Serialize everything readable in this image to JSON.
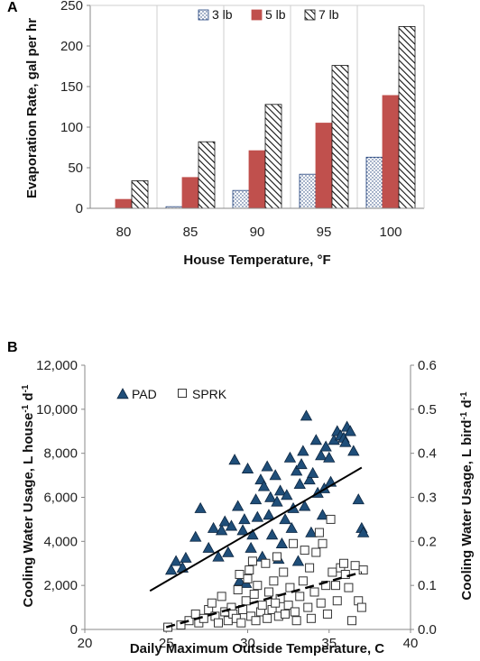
{
  "colors": {
    "lb5": "#c0504d",
    "pad_fill": "#1f4e79",
    "axis": "#888888",
    "grid": "#cfcfcf"
  },
  "chart_data": [
    {
      "panel_label": "A",
      "type": "bar",
      "categories": [
        "80",
        "85",
        "90",
        "95",
        "100"
      ],
      "series": [
        {
          "name": "3 lb",
          "pattern": "dots",
          "values": [
            0,
            2,
            22,
            42,
            63
          ]
        },
        {
          "name": "5 lb",
          "pattern": "solid-red",
          "values": [
            11,
            38,
            71,
            105,
            139
          ]
        },
        {
          "name": "7 lb",
          "pattern": "diagonal-hatch",
          "values": [
            34,
            82,
            128,
            176,
            224
          ]
        }
      ],
      "xlabel": "House Temperature, °F",
      "ylabel": "Evaporation Rate, gal per hr",
      "ylim": [
        0,
        250
      ],
      "yticks": [
        "0",
        "50",
        "100",
        "150",
        "200",
        "250"
      ],
      "grid": "vertical category separators",
      "legend": "top-right"
    },
    {
      "panel_label": "B",
      "type": "scatter",
      "xlabel": "Daily Maximum Outside Temperature, C",
      "ylabel_left_parts": [
        "Cooling Water Usage, L house",
        "-1",
        " d",
        "-1"
      ],
      "ylabel_right_parts": [
        "Cooling Water Usage, L bird",
        "-1",
        " d",
        "-1"
      ],
      "xlim": [
        20,
        40
      ],
      "ylim_left": [
        0,
        12000
      ],
      "ylim_right": [
        0,
        0.6
      ],
      "xticks": [
        "20",
        "25",
        "30",
        "35",
        "40"
      ],
      "yticks_left": [
        "0",
        "2,000",
        "4,000",
        "6,000",
        "8,000",
        "10,000",
        "12,000"
      ],
      "yticks_right": [
        "0.0",
        "0.1",
        "0.2",
        "0.3",
        "0.4",
        "0.5",
        "0.6"
      ],
      "legend": "top-left",
      "series": [
        {
          "name": "PAD",
          "marker": "filled-triangle",
          "trend": {
            "style": "solid",
            "x": [
              24,
              37
            ],
            "y": [
              1750,
              7350
            ]
          },
          "points": [
            [
              25.3,
              2700
            ],
            [
              25.6,
              3100
            ],
            [
              26.0,
              2800
            ],
            [
              26.2,
              3250
            ],
            [
              26.8,
              4200
            ],
            [
              27.1,
              5500
            ],
            [
              27.6,
              3700
            ],
            [
              27.9,
              4600
            ],
            [
              28.2,
              3300
            ],
            [
              28.4,
              4500
            ],
            [
              28.6,
              4900
            ],
            [
              28.8,
              3500
            ],
            [
              29.0,
              4700
            ],
            [
              29.2,
              7700
            ],
            [
              29.4,
              5600
            ],
            [
              29.5,
              2200
            ],
            [
              29.7,
              4500
            ],
            [
              29.8,
              5000
            ],
            [
              30.0,
              7300
            ],
            [
              30.2,
              3700
            ],
            [
              30.3,
              4300
            ],
            [
              30.5,
              5900
            ],
            [
              30.6,
              5100
            ],
            [
              30.8,
              6800
            ],
            [
              30.9,
              3300
            ],
            [
              31.0,
              6500
            ],
            [
              31.2,
              7400
            ],
            [
              31.3,
              5200
            ],
            [
              31.4,
              6000
            ],
            [
              31.5,
              4300
            ],
            [
              31.7,
              7000
            ],
            [
              31.8,
              5800
            ],
            [
              32.0,
              6300
            ],
            [
              32.1,
              3900
            ],
            [
              32.3,
              5000
            ],
            [
              32.4,
              6100
            ],
            [
              32.6,
              7800
            ],
            [
              32.7,
              4600
            ],
            [
              32.8,
              5500
            ],
            [
              33.0,
              7200
            ],
            [
              33.1,
              3100
            ],
            [
              33.2,
              6600
            ],
            [
              33.4,
              8100
            ],
            [
              33.5,
              5600
            ],
            [
              33.6,
              9700
            ],
            [
              33.8,
              6800
            ],
            [
              33.9,
              4400
            ],
            [
              34.0,
              7100
            ],
            [
              34.2,
              8600
            ],
            [
              34.3,
              6200
            ],
            [
              34.5,
              7900
            ],
            [
              34.6,
              5200
            ],
            [
              34.8,
              8300
            ],
            [
              35.0,
              7800
            ],
            [
              35.1,
              6700
            ],
            [
              35.3,
              8600
            ],
            [
              35.5,
              9000
            ],
            [
              35.7,
              8800
            ],
            [
              35.9,
              8700
            ],
            [
              36.1,
              9200
            ],
            [
              36.3,
              9000
            ],
            [
              36.5,
              8100
            ],
            [
              36.8,
              5900
            ],
            [
              37.0,
              4600
            ],
            [
              37.1,
              4400
            ],
            [
              29.9,
              2100
            ],
            [
              31.9,
              3200
            ],
            [
              33.3,
              7500
            ],
            [
              34.7,
              6400
            ],
            [
              36.0,
              8500
            ]
          ]
        },
        {
          "name": "SPRK",
          "marker": "open-square",
          "trend": {
            "style": "dashed",
            "x": [
              25,
              37
            ],
            "y": [
              100,
              2600
            ]
          },
          "points": [
            [
              25.1,
              100
            ],
            [
              25.9,
              200
            ],
            [
              26.4,
              400
            ],
            [
              26.8,
              700
            ],
            [
              27.0,
              300
            ],
            [
              27.3,
              500
            ],
            [
              27.6,
              900
            ],
            [
              27.8,
              1200
            ],
            [
              28.0,
              600
            ],
            [
              28.2,
              300
            ],
            [
              28.4,
              1500
            ],
            [
              28.6,
              800
            ],
            [
              28.8,
              400
            ],
            [
              29.0,
              1000
            ],
            [
              29.1,
              700
            ],
            [
              29.3,
              500
            ],
            [
              29.4,
              1800
            ],
            [
              29.6,
              300
            ],
            [
              29.7,
              900
            ],
            [
              29.9,
              1300
            ],
            [
              30.0,
              2300
            ],
            [
              30.1,
              2700
            ],
            [
              30.2,
              600
            ],
            [
              30.4,
              1600
            ],
            [
              30.5,
              400
            ],
            [
              30.6,
              2000
            ],
            [
              30.8,
              800
            ],
            [
              30.9,
              1100
            ],
            [
              31.1,
              3000
            ],
            [
              31.2,
              500
            ],
            [
              31.3,
              1700
            ],
            [
              31.5,
              900
            ],
            [
              31.6,
              2200
            ],
            [
              31.8,
              3300
            ],
            [
              31.9,
              600
            ],
            [
              32.0,
              1400
            ],
            [
              32.2,
              2600
            ],
            [
              32.3,
              700
            ],
            [
              32.5,
              1100
            ],
            [
              32.6,
              1900
            ],
            [
              32.8,
              3900
            ],
            [
              32.9,
              800
            ],
            [
              33.0,
              400
            ],
            [
              33.2,
              1500
            ],
            [
              33.4,
              2200
            ],
            [
              33.5,
              3600
            ],
            [
              33.7,
              1000
            ],
            [
              33.8,
              2800
            ],
            [
              33.9,
              500
            ],
            [
              34.1,
              1700
            ],
            [
              34.2,
              3500
            ],
            [
              34.4,
              4400
            ],
            [
              34.5,
              1200
            ],
            [
              34.6,
              3900
            ],
            [
              34.8,
              2000
            ],
            [
              34.9,
              700
            ],
            [
              35.1,
              5000
            ],
            [
              35.2,
              2600
            ],
            [
              35.4,
              2000
            ],
            [
              35.5,
              1300
            ],
            [
              35.7,
              2800
            ],
            [
              35.9,
              3000
            ],
            [
              36.0,
              2500
            ],
            [
              36.2,
              1900
            ],
            [
              36.4,
              400
            ],
            [
              36.6,
              2900
            ],
            [
              36.8,
              1300
            ],
            [
              37.0,
              1000
            ],
            [
              37.1,
              2700
            ],
            [
              29.5,
              2500
            ],
            [
              30.3,
              3100
            ],
            [
              31.7,
              1200
            ]
          ]
        }
      ]
    }
  ]
}
